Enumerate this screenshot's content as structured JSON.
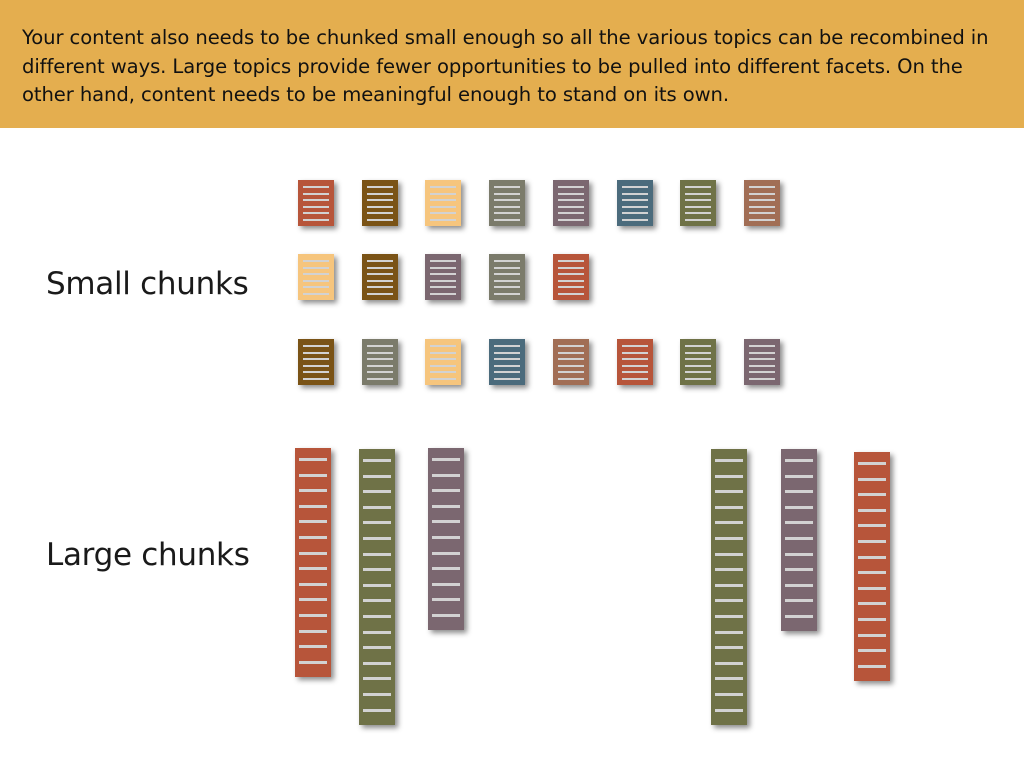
{
  "banner": {
    "text": "Your content also needs to be chunked small enough so all the various topics can be recombined in different ways. Large topics provide fewer opportunities to be pulled into different facets. On the other hand, content needs to be meaningful enough to stand on its own."
  },
  "labels": {
    "small": "Small chunks",
    "large": "Large chunks"
  },
  "colors": {
    "banner": "#e4ae4f",
    "red": "#b7553a",
    "brown": "#7a5316",
    "tan": "#f6c57d",
    "gray": "#7b7b6b",
    "mauve": "#7b6770",
    "blue": "#4b6b7c",
    "olive": "#6f7247",
    "dusty": "#a16e55",
    "line": "#d2d2d2"
  },
  "small_chunks": {
    "rows": [
      [
        "red",
        "brown",
        "tan",
        "gray",
        "mauve",
        "blue",
        "olive",
        "dusty"
      ],
      [
        "tan",
        "brown",
        "mauve",
        "gray",
        "red"
      ],
      [
        "brown",
        "gray",
        "tan",
        "blue",
        "dusty",
        "red",
        "olive",
        "mauve"
      ]
    ]
  },
  "large_chunks": [
    {
      "color": "red",
      "line_count": 14
    },
    {
      "color": "olive",
      "line_count": 17
    },
    {
      "color": "mauve",
      "line_count": 11
    },
    {
      "color": "olive",
      "line_count": 17
    },
    {
      "color": "mauve",
      "line_count": 11
    },
    {
      "color": "red",
      "line_count": 14
    }
  ]
}
